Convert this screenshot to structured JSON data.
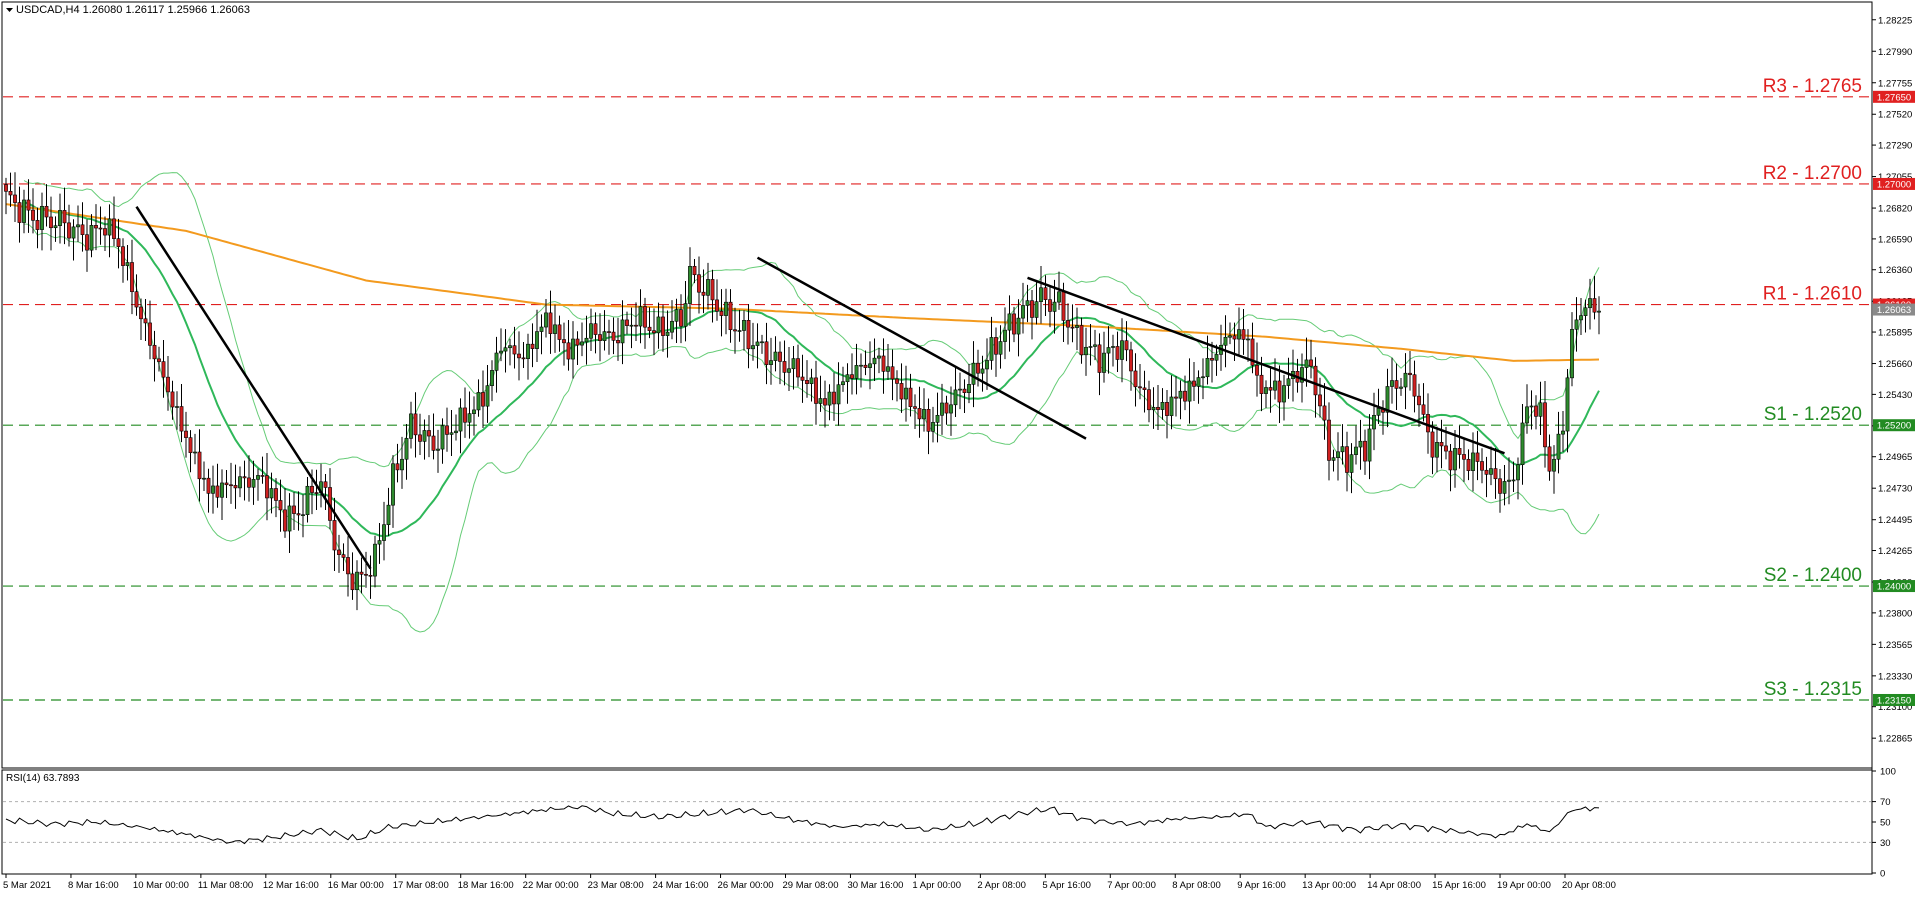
{
  "header": {
    "symbol_info": "USDCAD,H4  1.26080 1.26117 1.25966 1.26063",
    "triangle_icon": "triangle-down-icon"
  },
  "rsi_panel": {
    "label": "RSI(14) 63.7893",
    "levels": [
      "100",
      "70",
      "50",
      "30",
      "0"
    ]
  },
  "colors": {
    "bull": "#2e8b2e",
    "bear": "#d02020",
    "sma20": "#2fb85a",
    "bands": "#66cc77",
    "ma200": "#f39a1e",
    "trend": "#000000",
    "resistance": "#e02020",
    "support": "#228b22",
    "rsi": "#000000"
  },
  "chart_data": {
    "type": "candlestick",
    "instrument": "USDCAD",
    "timeframe": "H4",
    "ylim": [
      1.2265,
      1.2835
    ],
    "y_ticks": [
      "1.28225",
      "1.27990",
      "1.27755",
      "1.27520",
      "1.27290",
      "1.27055",
      "1.26820",
      "1.26590",
      "1.26360",
      "1.26125",
      "1.25895",
      "1.25660",
      "1.25430",
      "1.25195",
      "1.24965",
      "1.24730",
      "1.24495",
      "1.24265",
      "1.24030",
      "1.23800",
      "1.23565",
      "1.23330",
      "1.23100",
      "1.22865"
    ],
    "price_badges": [
      {
        "text": "1.27650",
        "value": 1.2765,
        "color": "#e02020"
      },
      {
        "text": "1.27000",
        "value": 1.27,
        "color": "#e02020"
      },
      {
        "text": "1.26100",
        "value": 1.261,
        "color": "#e02020"
      },
      {
        "text": "1.26063",
        "value": 1.26063,
        "color": "#8a8a8a"
      },
      {
        "text": "1.25200",
        "value": 1.252,
        "color": "#228b22"
      },
      {
        "text": "1.24000",
        "value": 1.24,
        "color": "#228b22"
      },
      {
        "text": "1.23150",
        "value": 1.2315,
        "color": "#228b22"
      }
    ],
    "levels": [
      {
        "label": "R3 - 1.2765",
        "value": 1.2765,
        "kind": "resistance"
      },
      {
        "label": "R2 - 1.2700",
        "value": 1.27,
        "kind": "resistance"
      },
      {
        "label": "R1 - 1.2610",
        "value": 1.261,
        "kind": "resistance"
      },
      {
        "label": "S1 - 1.2520",
        "value": 1.252,
        "kind": "support"
      },
      {
        "label": "S2 - 1.2400",
        "value": 1.24,
        "kind": "support"
      },
      {
        "label": "S3 - 1.2315",
        "value": 1.2315,
        "kind": "support"
      }
    ],
    "x_labels": [
      "5 Mar 2021",
      "8 Mar 16:00",
      "10 Mar 00:00",
      "11 Mar 08:00",
      "12 Mar 16:00",
      "16 Mar 00:00",
      "17 Mar 08:00",
      "18 Mar 16:00",
      "22 Mar 00:00",
      "23 Mar 08:00",
      "24 Mar 16:00",
      "26 Mar 00:00",
      "29 Mar 08:00",
      "30 Mar 16:00",
      "1 Apr 00:00",
      "2 Apr 08:00",
      "5 Apr 16:00",
      "7 Apr 00:00",
      "8 Apr 08:00",
      "9 Apr 16:00",
      "13 Apr 00:00",
      "14 Apr 08:00",
      "15 Apr 16:00",
      "19 Apr 00:00",
      "20 Apr 08:00"
    ],
    "close_anchors": [
      [
        0,
        1.269
      ],
      [
        6,
        1.2675
      ],
      [
        12,
        1.2672
      ],
      [
        18,
        1.266
      ],
      [
        22,
        1.267
      ],
      [
        25,
        1.2655
      ],
      [
        30,
        1.26
      ],
      [
        35,
        1.2555
      ],
      [
        40,
        1.251
      ],
      [
        45,
        1.247
      ],
      [
        52,
        1.2478
      ],
      [
        57,
        1.248
      ],
      [
        62,
        1.245
      ],
      [
        65,
        1.2455
      ],
      [
        70,
        1.248
      ],
      [
        74,
        1.242
      ],
      [
        78,
        1.2402
      ],
      [
        82,
        1.242
      ],
      [
        86,
        1.248
      ],
      [
        90,
        1.252
      ],
      [
        95,
        1.2505
      ],
      [
        100,
        1.252
      ],
      [
        106,
        1.254
      ],
      [
        110,
        1.258
      ],
      [
        115,
        1.257
      ],
      [
        120,
        1.26
      ],
      [
        125,
        1.2575
      ],
      [
        130,
        1.259
      ],
      [
        135,
        1.2585
      ],
      [
        140,
        1.26
      ],
      [
        145,
        1.259
      ],
      [
        150,
        1.26
      ],
      [
        152,
        1.2632
      ],
      [
        157,
        1.2615
      ],
      [
        160,
        1.26
      ],
      [
        165,
        1.2585
      ],
      [
        170,
        1.257
      ],
      [
        176,
        1.256
      ],
      [
        182,
        1.2535
      ],
      [
        188,
        1.256
      ],
      [
        194,
        1.257
      ],
      [
        199,
        1.2545
      ],
      [
        205,
        1.252
      ],
      [
        212,
        1.2545
      ],
      [
        218,
        1.257
      ],
      [
        222,
        1.259
      ],
      [
        226,
        1.2605
      ],
      [
        230,
        1.2615
      ],
      [
        234,
        1.261
      ],
      [
        238,
        1.2585
      ],
      [
        243,
        1.257
      ],
      [
        248,
        1.258
      ],
      [
        252,
        1.2545
      ],
      [
        256,
        1.253
      ],
      [
        260,
        1.254
      ],
      [
        264,
        1.255
      ],
      [
        268,
        1.257
      ],
      [
        272,
        1.2588
      ],
      [
        276,
        1.2585
      ],
      [
        278,
        1.255
      ],
      [
        283,
        1.2545
      ],
      [
        287,
        1.256
      ],
      [
        290,
        1.2565
      ],
      [
        294,
        1.25
      ],
      [
        298,
        1.2495
      ],
      [
        302,
        1.2505
      ],
      [
        306,
        1.254
      ],
      [
        310,
        1.2555
      ],
      [
        313,
        1.255
      ],
      [
        316,
        1.251
      ],
      [
        320,
        1.2498
      ],
      [
        324,
        1.2495
      ],
      [
        328,
        1.249
      ],
      [
        332,
        1.2475
      ],
      [
        335,
        1.2478
      ],
      [
        338,
        1.2535
      ],
      [
        341,
        1.253
      ],
      [
        343,
        1.2485
      ],
      [
        346,
        1.252
      ],
      [
        348,
        1.259
      ],
      [
        350,
        1.2605
      ],
      [
        352,
        1.261
      ],
      [
        354,
        1.2606
      ]
    ],
    "ma200_anchors": [
      [
        0,
        1.2685
      ],
      [
        40,
        1.2665
      ],
      [
        80,
        1.2628
      ],
      [
        120,
        1.261
      ],
      [
        160,
        1.2607
      ],
      [
        200,
        1.26
      ],
      [
        240,
        1.2594
      ],
      [
        280,
        1.2586
      ],
      [
        310,
        1.2577
      ],
      [
        335,
        1.2568
      ],
      [
        354,
        1.2569
      ]
    ],
    "trendlines": [
      {
        "from": [
          29,
          1.2683
        ],
        "to": [
          81,
          1.2413
        ]
      },
      {
        "from": [
          167,
          1.2645
        ],
        "to": [
          240,
          1.251
        ]
      },
      {
        "from": [
          227,
          1.263
        ],
        "to": [
          333,
          1.2499
        ]
      }
    ],
    "rsi": {
      "ylim": [
        0,
        100
      ],
      "last": 63.7893,
      "anchors": [
        [
          0,
          52
        ],
        [
          10,
          48
        ],
        [
          20,
          50
        ],
        [
          30,
          45
        ],
        [
          40,
          38
        ],
        [
          50,
          30
        ],
        [
          60,
          35
        ],
        [
          70,
          42
        ],
        [
          78,
          33
        ],
        [
          85,
          45
        ],
        [
          95,
          50
        ],
        [
          110,
          57
        ],
        [
          120,
          62
        ],
        [
          128,
          65
        ],
        [
          135,
          58
        ],
        [
          145,
          55
        ],
        [
          155,
          58
        ],
        [
          165,
          62
        ],
        [
          175,
          52
        ],
        [
          185,
          45
        ],
        [
          195,
          48
        ],
        [
          205,
          42
        ],
        [
          215,
          48
        ],
        [
          225,
          58
        ],
        [
          232,
          63
        ],
        [
          240,
          52
        ],
        [
          250,
          48
        ],
        [
          260,
          53
        ],
        [
          270,
          55
        ],
        [
          276,
          58
        ],
        [
          280,
          45
        ],
        [
          290,
          50
        ],
        [
          300,
          42
        ],
        [
          310,
          47
        ],
        [
          320,
          42
        ],
        [
          332,
          36
        ],
        [
          338,
          48
        ],
        [
          343,
          40
        ],
        [
          348,
          62
        ],
        [
          354,
          63.79
        ]
      ]
    }
  }
}
